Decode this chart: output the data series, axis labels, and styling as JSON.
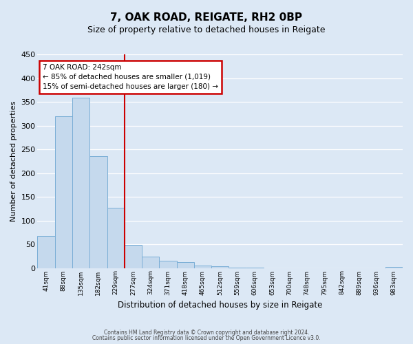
{
  "title": "7, OAK ROAD, REIGATE, RH2 0BP",
  "subtitle": "Size of property relative to detached houses in Reigate",
  "xlabel": "Distribution of detached houses by size in Reigate",
  "ylabel": "Number of detached properties",
  "bar_labels": [
    "41sqm",
    "88sqm",
    "135sqm",
    "182sqm",
    "229sqm",
    "277sqm",
    "324sqm",
    "371sqm",
    "418sqm",
    "465sqm",
    "512sqm",
    "559sqm",
    "606sqm",
    "653sqm",
    "700sqm",
    "748sqm",
    "795sqm",
    "842sqm",
    "889sqm",
    "936sqm",
    "983sqm"
  ],
  "bar_values": [
    67,
    320,
    358,
    235,
    127,
    49,
    24,
    15,
    12,
    5,
    3,
    1,
    1,
    0,
    0,
    0,
    0,
    0,
    0,
    0,
    2
  ],
  "bar_color": "#c5d9ed",
  "bar_edge_color": "#7aaed6",
  "ylim": [
    0,
    450
  ],
  "yticks": [
    0,
    50,
    100,
    150,
    200,
    250,
    300,
    350,
    400,
    450
  ],
  "vline_x_index": 5,
  "vline_color": "#cc0000",
  "annotation_title": "7 OAK ROAD: 242sqm",
  "annotation_line1": "← 85% of detached houses are smaller (1,019)",
  "annotation_line2": "15% of semi-detached houses are larger (180) →",
  "annotation_box_color": "#ffffff",
  "annotation_box_edge_color": "#cc0000",
  "footer_line1": "Contains HM Land Registry data © Crown copyright and database right 2024.",
  "footer_line2": "Contains public sector information licensed under the Open Government Licence v3.0.",
  "background_color": "#dce8f5",
  "plot_bg_color": "#dce8f5",
  "title_fontsize": 11,
  "subtitle_fontsize": 9
}
